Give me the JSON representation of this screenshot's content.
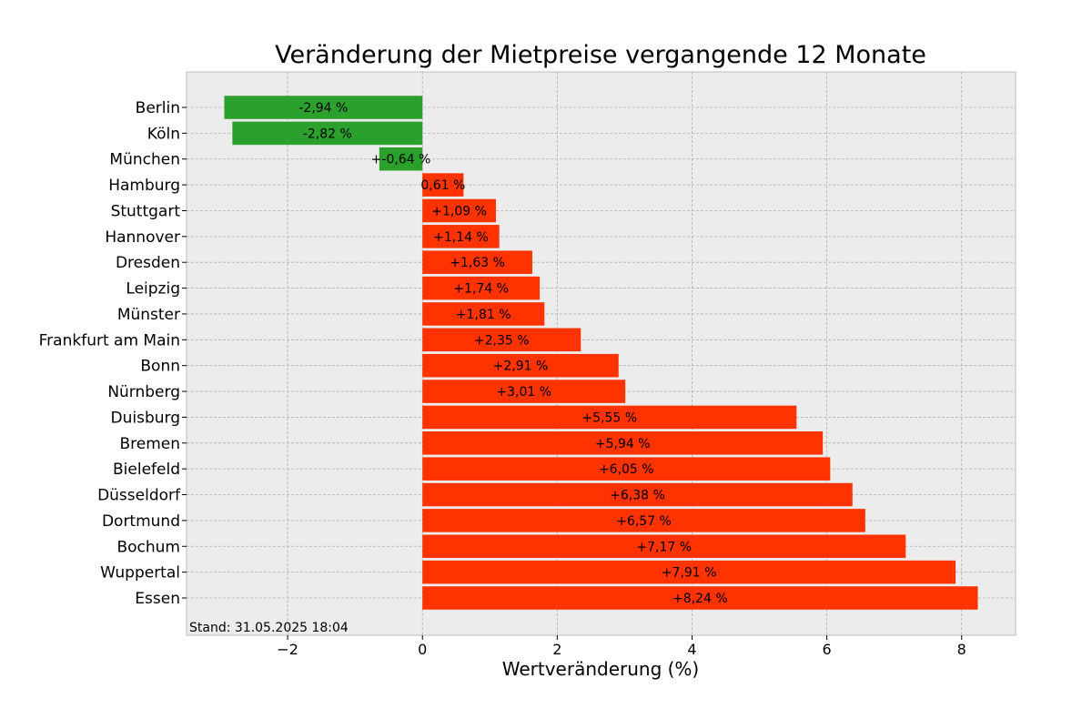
{
  "chart_data": {
    "type": "bar",
    "orientation": "horizontal",
    "title": "Veränderung der Mietpreise vergangende 12 Monate",
    "xlabel": "Wertveränderung (%)",
    "ylabel": "",
    "xlim": [
      -3.5,
      8.8
    ],
    "xticks": [
      -2,
      0,
      2,
      4,
      6,
      8
    ],
    "xtick_labels": [
      "−2",
      "0",
      "2",
      "4",
      "6",
      "8"
    ],
    "grid": true,
    "footnote": "Stand: 31.05.2025 18:04",
    "colors": {
      "negative": "#2ca02c",
      "positive": "#ff3300",
      "plot_background": "#ececec",
      "grid": "#b0b0b0"
    },
    "categories": [
      "Berlin",
      "Köln",
      "München",
      "Hamburg",
      "Stuttgart",
      "Hannover",
      "Dresden",
      "Leipzig",
      "Münster",
      "Frankfurt am Main",
      "Bonn",
      "Nürnberg",
      "Duisburg",
      "Bremen",
      "Bielefeld",
      "Düsseldorf",
      "Dortmund",
      "Bochum",
      "Wuppertal",
      "Essen"
    ],
    "values": [
      -2.94,
      -2.82,
      -0.64,
      0.61,
      1.09,
      1.14,
      1.63,
      1.74,
      1.81,
      2.35,
      2.91,
      3.01,
      5.55,
      5.94,
      6.05,
      6.38,
      6.57,
      7.17,
      7.91,
      8.24
    ],
    "data_labels": [
      "-2,94 %",
      "-2,82 %",
      "+-0,64 %",
      "0,61 %",
      "+1,09 %",
      "+1,14 %",
      "+1,63 %",
      "+1,74 %",
      "+1,81 %",
      "+2,35 %",
      "+2,91 %",
      "+3,01 %",
      "+5,55 %",
      "+5,94 %",
      "+6,05 %",
      "+6,38 %",
      "+6,57 %",
      "+7,17 %",
      "+7,91 %",
      "+8,24 %"
    ]
  }
}
